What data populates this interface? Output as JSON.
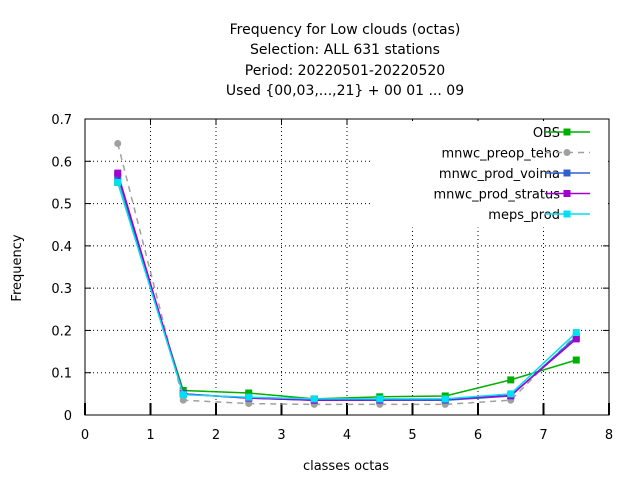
{
  "chart_data": {
    "type": "line",
    "title_lines": [
      "Frequency  for Low clouds (octas)",
      "Selection: ALL    631 stations",
      "Period: 20220501-20220520",
      "Used {00,03,...,21} + 00 01 ... 09"
    ],
    "xlabel": "classes octas",
    "ylabel": "Frequency",
    "xlim": [
      0,
      8
    ],
    "ylim": [
      0,
      0.7
    ],
    "x_ticks": [
      "0",
      "1",
      "2",
      "3",
      "4",
      "5",
      "6",
      "7",
      "8"
    ],
    "y_ticks": [
      "0",
      "0.1",
      "0.2",
      "0.3",
      "0.4",
      "0.5",
      "0.6",
      "0.7"
    ],
    "grid": true,
    "legend_position": "top-right",
    "x": [
      0.5,
      1.5,
      2.5,
      3.5,
      4.5,
      5.5,
      6.5,
      7.5
    ],
    "series": [
      {
        "name": "OBS",
        "color": "#00b000",
        "dashed": false,
        "marker": "square",
        "values": [
          0.55,
          0.058,
          0.052,
          0.038,
          0.043,
          0.045,
          0.083,
          0.13
        ]
      },
      {
        "name": "mnwc_preop_teho",
        "color": "#a0a0a0",
        "dashed": true,
        "marker": "circle",
        "values": [
          0.642,
          0.035,
          0.027,
          0.025,
          0.025,
          0.025,
          0.035,
          0.19
        ]
      },
      {
        "name": "mnwc_prod_voima",
        "color": "#3060d0",
        "dashed": false,
        "marker": "square",
        "values": [
          0.565,
          0.05,
          0.04,
          0.035,
          0.035,
          0.035,
          0.045,
          0.185
        ]
      },
      {
        "name": "mnwc_prod_stratus",
        "color": "#a000d0",
        "dashed": false,
        "marker": "square",
        "values": [
          0.572,
          0.05,
          0.04,
          0.035,
          0.036,
          0.037,
          0.046,
          0.18
        ]
      },
      {
        "name": "meps_prod",
        "color": "#00e0f0",
        "dashed": false,
        "marker": "square",
        "values": [
          0.55,
          0.048,
          0.042,
          0.038,
          0.038,
          0.038,
          0.05,
          0.195
        ]
      }
    ]
  }
}
